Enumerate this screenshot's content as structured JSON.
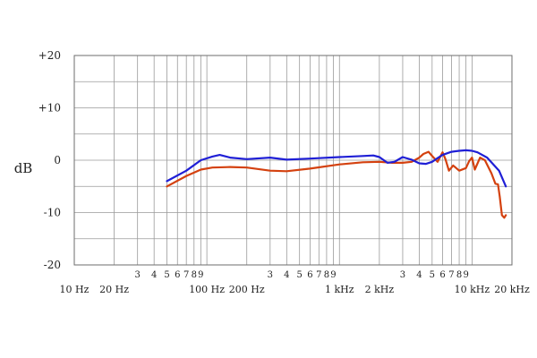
{
  "chart_data": {
    "type": "line",
    "ylabel": "dB",
    "x_scale": "log",
    "xlim": [
      10,
      20000
    ],
    "ylim": [
      -20,
      20
    ],
    "grid": true,
    "y_ticks": [
      {
        "value": 20,
        "label": "+20"
      },
      {
        "value": 10,
        "label": "+10"
      },
      {
        "value": 0,
        "label": "0"
      },
      {
        "value": -10,
        "label": "-10"
      },
      {
        "value": -20,
        "label": "-20"
      }
    ],
    "x_major_ticks": [
      {
        "value": 10,
        "label": "10 Hz"
      },
      {
        "value": 20,
        "label": "20 Hz"
      },
      {
        "value": 100,
        "label": "100 Hz"
      },
      {
        "value": 200,
        "label": "200 Hz"
      },
      {
        "value": 1000,
        "label": "1 kHz"
      },
      {
        "value": 2000,
        "label": "2 kHz"
      },
      {
        "value": 10000,
        "label": "10 kHz"
      },
      {
        "value": 20000,
        "label": "20 kHz"
      }
    ],
    "x_minor_ticks": [
      {
        "value": 30,
        "label": "3"
      },
      {
        "value": 40,
        "label": "4"
      },
      {
        "value": 50,
        "label": "5"
      },
      {
        "value": 60,
        "label": "6"
      },
      {
        "value": 70,
        "label": "7"
      },
      {
        "value": 80,
        "label": "8"
      },
      {
        "value": 90,
        "label": "9"
      },
      {
        "value": 300,
        "label": "3"
      },
      {
        "value": 400,
        "label": "4"
      },
      {
        "value": 500,
        "label": "5"
      },
      {
        "value": 600,
        "label": "6"
      },
      {
        "value": 700,
        "label": "7"
      },
      {
        "value": 800,
        "label": "8"
      },
      {
        "value": 900,
        "label": "9"
      },
      {
        "value": 3000,
        "label": "3"
      },
      {
        "value": 4000,
        "label": "4"
      },
      {
        "value": 5000,
        "label": "5"
      },
      {
        "value": 6000,
        "label": "6"
      },
      {
        "value": 7000,
        "label": "7"
      },
      {
        "value": 8000,
        "label": "8"
      },
      {
        "value": 9000,
        "label": "9"
      }
    ],
    "series": [
      {
        "color": "#1f1fd6",
        "points": [
          [
            50,
            -4
          ],
          [
            70,
            -2
          ],
          [
            90,
            0
          ],
          [
            110,
            0.7
          ],
          [
            125,
            1
          ],
          [
            150,
            0.5
          ],
          [
            200,
            0.2
          ],
          [
            300,
            0.5
          ],
          [
            400,
            0.1
          ],
          [
            600,
            0.3
          ],
          [
            1000,
            0.6
          ],
          [
            1500,
            0.8
          ],
          [
            1800,
            0.9
          ],
          [
            2000,
            0.6
          ],
          [
            2300,
            -0.5
          ],
          [
            2600,
            -0.3
          ],
          [
            3000,
            0.6
          ],
          [
            3500,
            0.1
          ],
          [
            4000,
            -0.6
          ],
          [
            4500,
            -0.7
          ],
          [
            5000,
            -0.3
          ],
          [
            5500,
            0.4
          ],
          [
            6000,
            1
          ],
          [
            7000,
            1.6
          ],
          [
            8000,
            1.8
          ],
          [
            9000,
            1.9
          ],
          [
            10000,
            1.8
          ],
          [
            11000,
            1.5
          ],
          [
            13000,
            0.5
          ],
          [
            16000,
            -2
          ],
          [
            18000,
            -5
          ]
        ]
      },
      {
        "color": "#d4410f",
        "points": [
          [
            50,
            -5
          ],
          [
            70,
            -3
          ],
          [
            90,
            -1.8
          ],
          [
            110,
            -1.4
          ],
          [
            150,
            -1.3
          ],
          [
            200,
            -1.4
          ],
          [
            300,
            -2
          ],
          [
            400,
            -2.1
          ],
          [
            600,
            -1.6
          ],
          [
            1000,
            -0.8
          ],
          [
            1500,
            -0.4
          ],
          [
            2000,
            -0.3
          ],
          [
            2500,
            -0.5
          ],
          [
            3000,
            -0.5
          ],
          [
            3500,
            -0.3
          ],
          [
            4000,
            0.5
          ],
          [
            4300,
            1.2
          ],
          [
            4700,
            1.6
          ],
          [
            5000,
            0.8
          ],
          [
            5500,
            -0.3
          ],
          [
            6000,
            1.5
          ],
          [
            6300,
            0.2
          ],
          [
            6700,
            -2
          ],
          [
            7200,
            -1
          ],
          [
            8000,
            -2
          ],
          [
            9000,
            -1.5
          ],
          [
            9500,
            -0.2
          ],
          [
            10000,
            0.5
          ],
          [
            10500,
            -1.8
          ],
          [
            11500,
            0.5
          ],
          [
            12500,
            0
          ],
          [
            14000,
            -2.5
          ],
          [
            15000,
            -4.5
          ],
          [
            15700,
            -4.6
          ],
          [
            16200,
            -7
          ],
          [
            16800,
            -10.5
          ],
          [
            17500,
            -11
          ],
          [
            18000,
            -10.5
          ]
        ]
      }
    ]
  }
}
